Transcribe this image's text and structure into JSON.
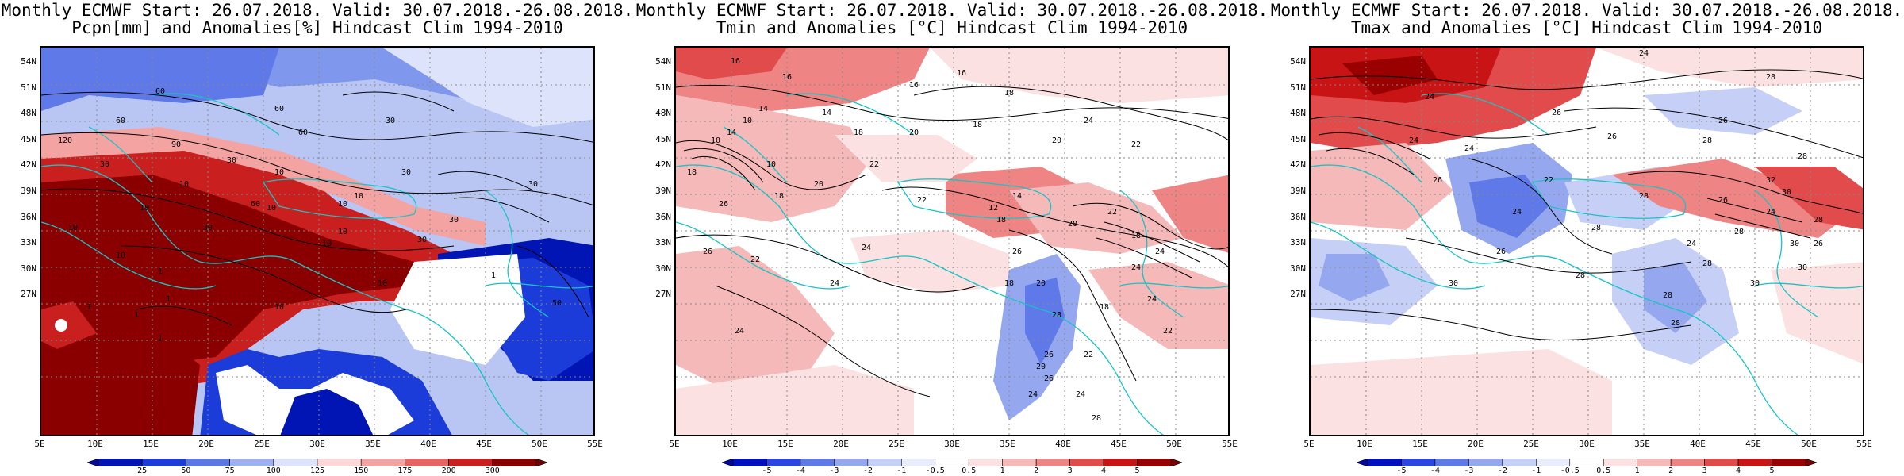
{
  "panels": [
    {
      "title_line1": "Monthly ECMWF Start: 26.07.2018. Valid: 30.07.2018.-26.08.2018.",
      "title_line2": "Pcpn[mm] and Anomalies[%] Hindcast Clim 1994-2010",
      "colorbar": {
        "labels": [
          "25",
          "50",
          "75",
          "100",
          "125",
          "150",
          "175",
          "200",
          "300"
        ],
        "colors": [
          "#0015b3",
          "#1c3cd9",
          "#5c78e8",
          "#9fb0f0",
          "#dde3fa",
          "#fbd9d9",
          "#f4a3a3",
          "#e86464",
          "#c91f1f",
          "#8a0000"
        ],
        "end_colors": [
          "#0008a0",
          "#6e0000"
        ]
      },
      "contour_labels": [
        "60",
        "60",
        "30",
        "120",
        "60",
        "90",
        "30",
        "30",
        "30",
        "10",
        "10",
        "30",
        "10",
        "60",
        "10",
        "10",
        "30",
        "10",
        "10",
        "10",
        "1",
        "1",
        "1",
        "1",
        "1",
        "50",
        "10",
        "30",
        "60",
        "1",
        "10",
        "10",
        "30",
        "10"
      ]
    },
    {
      "title_line1": "Monthly ECMWF Start: 26.07.2018. Valid: 30.07.2018.-26.08.2018.",
      "title_line2": "Tmin and Anomalies [°C] Hindcast Clim 1994-2010",
      "colorbar": {
        "labels": [
          "-5",
          "-4",
          "-3",
          "-2",
          "-1",
          "-0.5",
          "0.5",
          "1",
          "2",
          "3",
          "4",
          "5"
        ],
        "colors": [
          "#0010c0",
          "#2a45e0",
          "#5f7ae8",
          "#95a8ef",
          "#c6d0f7",
          "#e8ecfb",
          "#ffffff",
          "#fbe1e1",
          "#f6b9b9",
          "#ee8484",
          "#e14b4b",
          "#c81414",
          "#9a0000"
        ],
        "end_colors": [
          "#0008a0",
          "#7a0000"
        ]
      },
      "contour_labels": [
        "16",
        "16",
        "14",
        "16",
        "18",
        "16",
        "14",
        "10",
        "14",
        "18",
        "10",
        "10",
        "20",
        "22",
        "24",
        "18",
        "20",
        "22",
        "18",
        "20",
        "26",
        "22",
        "18",
        "26",
        "24",
        "26",
        "22",
        "24",
        "18",
        "14",
        "12",
        "18",
        "22",
        "20",
        "24",
        "28",
        "26",
        "20",
        "22",
        "18",
        "24",
        "22",
        "24",
        "24",
        "18",
        "20",
        "26",
        "24",
        "24",
        "28"
      ]
    },
    {
      "title_line1": "Monthly ECMWF Start: 26.07.2018. Valid: 30.07.2018.-26.08.2018.",
      "title_line2": "Tmax and Anomalies [°C] Hindcast Clim 1994-2010",
      "colorbar": {
        "labels": [
          "-5",
          "-4",
          "-3",
          "-2",
          "-1",
          "-0.5",
          "0.5",
          "1",
          "2",
          "3",
          "4",
          "5"
        ],
        "colors": [
          "#0010c0",
          "#2a45e0",
          "#5f7ae8",
          "#95a8ef",
          "#c6d0f7",
          "#e8ecfb",
          "#ffffff",
          "#fbe1e1",
          "#f6b9b9",
          "#ee8484",
          "#e14b4b",
          "#c81414",
          "#9a0000"
        ],
        "end_colors": [
          "#0008a0",
          "#7a0000"
        ]
      },
      "contour_labels": [
        "24",
        "28",
        "26",
        "26",
        "24",
        "28",
        "26",
        "28",
        "24",
        "22",
        "26",
        "24",
        "28",
        "26",
        "30",
        "28",
        "28",
        "24",
        "30",
        "28",
        "24",
        "30",
        "30",
        "28",
        "26",
        "28",
        "30",
        "24",
        "32",
        "26",
        "28",
        "28"
      ]
    }
  ],
  "y_ticks": [
    "54N",
    "51N",
    "48N",
    "45N",
    "42N",
    "39N",
    "36N",
    "33N",
    "30N",
    "27N"
  ],
  "x_ticks": [
    "5E",
    "10E",
    "15E",
    "20E",
    "25E",
    "30E",
    "35E",
    "40E",
    "45E",
    "50E",
    "55E"
  ]
}
